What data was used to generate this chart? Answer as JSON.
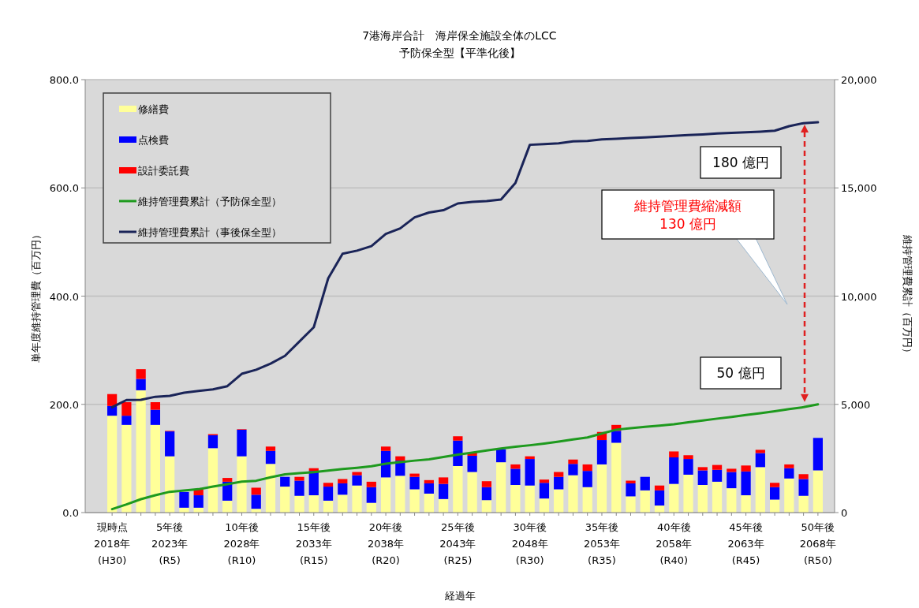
{
  "chart_data": {
    "type": "bar",
    "title": "7港海岸合計　海岸保全施設全体のLCC",
    "subtitle": "予防保全型【平準化後】",
    "xlabel": "経過年",
    "ylabel": "単年度維持管理費（百万円）",
    "y2label": "維持管理費累計（百万円）",
    "categories": [
      "現時点\n2018年\n(H30)",
      null,
      null,
      null,
      "5年後\n2023年\n(R5)",
      null,
      null,
      null,
      null,
      "10年後\n2028年\n(R10)",
      null,
      null,
      null,
      null,
      "15年後\n2033年\n(R15)",
      null,
      null,
      null,
      null,
      "20年後\n2038年\n(R20)",
      null,
      null,
      null,
      null,
      "25年後\n2043年\n(R25)",
      null,
      null,
      null,
      null,
      "30年後\n2048年\n(R30)",
      null,
      null,
      null,
      null,
      "35年後\n2053年\n(R35)",
      null,
      null,
      null,
      null,
      "40年後\n2058年\n(R40)",
      null,
      null,
      null,
      null,
      "45年後\n2063年\n(R45)",
      null,
      null,
      null,
      null,
      "50年後\n2068年\n(R50)"
    ],
    "stacked": true,
    "series": [
      {
        "name": "修繕費",
        "color": "#ffff99",
        "values": [
          179,
          162,
          226,
          162,
          104,
          9,
          9,
          119,
          22,
          104,
          7,
          90,
          48,
          31,
          32,
          22,
          33,
          50,
          18,
          65,
          68,
          43,
          35,
          25,
          86,
          75,
          23,
          93,
          51,
          50,
          26,
          43,
          69,
          47,
          89,
          129,
          30,
          41,
          13,
          53,
          70,
          51,
          57,
          45,
          32,
          84,
          24,
          63,
          31,
          78
        ]
      },
      {
        "name": "点検費",
        "color": "#0000ff",
        "values": [
          18,
          17,
          21,
          28,
          46,
          29,
          23,
          24,
          35,
          49,
          26,
          24,
          18,
          28,
          45,
          26,
          21,
          19,
          29,
          49,
          28,
          23,
          19,
          28,
          47,
          30,
          24,
          24,
          30,
          49,
          29,
          23,
          21,
          30,
          45,
          22,
          24,
          25,
          28,
          49,
          29,
          27,
          22,
          30,
          44,
          26,
          23,
          19,
          31,
          60
        ]
      },
      {
        "name": "設計委託費",
        "color": "#ff0000",
        "values": [
          22,
          25,
          18,
          14,
          1,
          0,
          11,
          2,
          7,
          1,
          13,
          8,
          null,
          7,
          5,
          7,
          8,
          6,
          10,
          8,
          8,
          6,
          6,
          12,
          8,
          6,
          11,
          null,
          8,
          5,
          6,
          9,
          8,
          12,
          15,
          11,
          5,
          0,
          9,
          11,
          7,
          6,
          9,
          6,
          11,
          6,
          8,
          7,
          9,
          null
        ]
      },
      {
        "name": "維持管理費累計（予防保全型）",
        "type": "line",
        "axis": "y2",
        "color": "#1e9a1e",
        "values": [
          160,
          380,
          620,
          800,
          960,
          1020,
          1080,
          1200,
          1310,
          1430,
          1470,
          1630,
          1770,
          1820,
          1870,
          1940,
          2010,
          2070,
          2140,
          2260,
          2330,
          2400,
          2460,
          2570,
          2680,
          2770,
          2870,
          2960,
          3040,
          3110,
          3190,
          3280,
          3380,
          3470,
          3650,
          3830,
          3900,
          3960,
          4020,
          4080,
          4170,
          4250,
          4340,
          4420,
          4510,
          4590,
          4680,
          4780,
          4870,
          5000
        ]
      },
      {
        "name": "維持管理費累計（事後保全型）",
        "type": "line",
        "axis": "y2",
        "color": "#1a2458",
        "values": [
          4870,
          5200,
          5210,
          5350,
          5390,
          5540,
          5620,
          5690,
          5840,
          6410,
          6600,
          6880,
          7240,
          7900,
          8560,
          10820,
          11960,
          12100,
          12310,
          12870,
          13130,
          13640,
          13860,
          13970,
          14280,
          14350,
          14390,
          14460,
          15230,
          16990,
          17020,
          17060,
          17150,
          17170,
          17240,
          17270,
          17300,
          17330,
          17370,
          17400,
          17440,
          17470,
          17510,
          17540,
          17570,
          17600,
          17640,
          17850,
          17990,
          18030
        ]
      }
    ],
    "ylim": [
      0,
      800
    ],
    "yticks": [
      {
        "value": 0,
        "label": "0.0"
      },
      {
        "value": 200,
        "label": "200.0"
      },
      {
        "value": 400,
        "label": "400.0"
      },
      {
        "value": 600,
        "label": "600.0"
      },
      {
        "value": 800,
        "label": "800.0"
      }
    ],
    "y2lim": [
      0,
      20000
    ],
    "y2ticks": [
      0,
      {
        "value": 5000,
        "label": "5,000"
      },
      {
        "value": 10000,
        "label": "10,000"
      },
      {
        "value": 15000,
        "label": "15,000"
      },
      {
        "value": 20000,
        "label": "20,000"
      }
    ],
    "grid": "y",
    "legend": "top left",
    "annotations": [
      "180 億円",
      "維持管理費縮減額\n130 億円",
      "50 億円"
    ]
  }
}
